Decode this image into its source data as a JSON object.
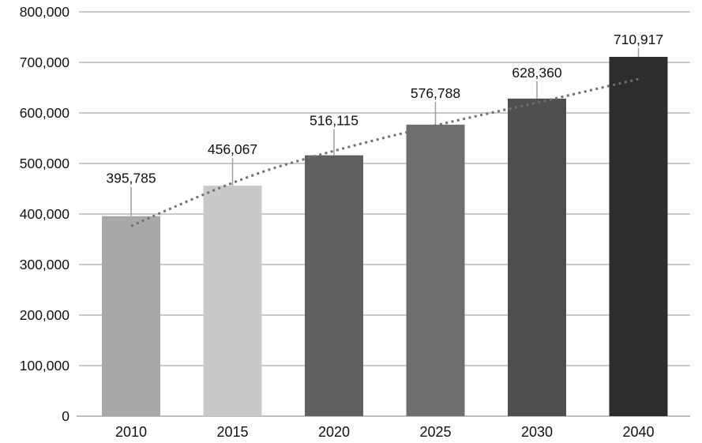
{
  "chart_data": {
    "type": "bar",
    "title": "",
    "xlabel": "",
    "ylabel": "",
    "categories": [
      "2010",
      "2015",
      "2020",
      "2025",
      "2030",
      "2040"
    ],
    "values": [
      395785,
      456067,
      516115,
      576788,
      628360,
      710917
    ],
    "data_labels": [
      "395,785",
      "456,067",
      "516,115",
      "576,788",
      "628,360",
      "710,917"
    ],
    "bar_colors": [
      "#a8a8a8",
      "#c9c9c9",
      "#606060",
      "#6e6e6e",
      "#4f4f4f",
      "#2d2d2d"
    ],
    "ylim": [
      0,
      800000
    ],
    "ytick_step": 100000,
    "ytick_labels": [
      "0",
      "100,000",
      "200,000",
      "300,000",
      "400,000",
      "500,000",
      "600,000",
      "700,000",
      "800,000"
    ],
    "grid": true,
    "legend": false,
    "trendline": {
      "type": "logarithmic",
      "style": "dotted",
      "color": "#6f6f6f",
      "estimated_values_at_categories": [
        376000,
        467000,
        526000,
        576000,
        620000,
        667000
      ]
    },
    "annotation_colors": {
      "gridline": "#b5b5b5",
      "axis_line": "#a9a9a9",
      "leader_line": "#9e9e9e",
      "label_text": "#111111"
    }
  }
}
